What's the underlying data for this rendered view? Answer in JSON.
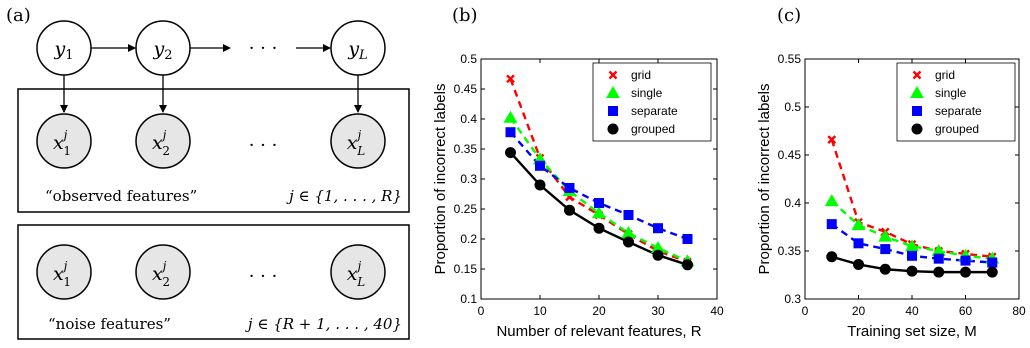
{
  "panel_a": {
    "label": "(a)",
    "top_nodes": [
      "y1",
      "y2",
      "yL"
    ],
    "dots_top": "· · ·",
    "observed_nodes": [
      "x1j",
      "x2j",
      "xLj"
    ],
    "dots_mid": "· · ·",
    "observed_caption": "“observed features”",
    "observed_index": "j ∈ {1, . . . , R}",
    "noise_nodes": [
      "x1j",
      "x2j",
      "xLj"
    ],
    "dots_bot": "· · ·",
    "noise_caption": "“noise features”",
    "noise_index": "j ∈ {R + 1, . . . , 40}"
  },
  "chart_data": [
    {
      "panel_label": "(b)",
      "type": "line",
      "xlabel": "Number of relevant features, R",
      "ylabel": "Proportion of incorrect labels",
      "xlim": [
        0,
        40
      ],
      "ylim": [
        0.1,
        0.5
      ],
      "xticks": [
        0,
        10,
        20,
        30,
        40
      ],
      "yticks": [
        0.1,
        0.15,
        0.2,
        0.25,
        0.3,
        0.35,
        0.4,
        0.45,
        0.5
      ],
      "ytick_labels": [
        "0.1",
        "0.15",
        "0.2",
        "0.25",
        "0.3",
        "0.35",
        "0.4",
        "0.45",
        "0.5"
      ],
      "legend_position": "top-right",
      "x": [
        5,
        10,
        15,
        20,
        25,
        30,
        35
      ],
      "series": [
        {
          "name": "grid",
          "color": "#ff0000",
          "marker": "x",
          "dashed": true,
          "values": [
            0.467,
            0.335,
            0.27,
            0.24,
            0.208,
            0.18,
            0.162
          ]
        },
        {
          "name": "single",
          "color": "#00ff00",
          "marker": "triangle",
          "dashed": true,
          "values": [
            0.402,
            0.333,
            0.28,
            0.243,
            0.21,
            0.185,
            0.163
          ]
        },
        {
          "name": "separate",
          "color": "#0000ff",
          "marker": "square",
          "dashed": true,
          "values": [
            0.378,
            0.322,
            0.285,
            0.26,
            0.24,
            0.218,
            0.2
          ]
        },
        {
          "name": "grouped",
          "color": "#000000",
          "marker": "circle",
          "dashed": false,
          "values": [
            0.344,
            0.29,
            0.248,
            0.218,
            0.195,
            0.173,
            0.157
          ]
        }
      ]
    },
    {
      "panel_label": "(c)",
      "type": "line",
      "xlabel": "Training set size, M",
      "ylabel": "Proportion of incorrect labels",
      "xlim": [
        0,
        80
      ],
      "ylim": [
        0.3,
        0.55
      ],
      "xticks": [
        0,
        20,
        40,
        60,
        80
      ],
      "yticks": [
        0.3,
        0.35,
        0.4,
        0.45,
        0.5,
        0.55
      ],
      "ytick_labels": [
        "0.3",
        "0.35",
        "0.4",
        "0.45",
        "0.5",
        "0.55"
      ],
      "legend_position": "top-right",
      "x": [
        10,
        20,
        30,
        40,
        50,
        60,
        70
      ],
      "series": [
        {
          "name": "grid",
          "color": "#ff0000",
          "marker": "x",
          "dashed": true,
          "values": [
            0.466,
            0.38,
            0.37,
            0.357,
            0.35,
            0.347,
            0.344
          ]
        },
        {
          "name": "single",
          "color": "#00ff00",
          "marker": "triangle",
          "dashed": true,
          "values": [
            0.402,
            0.377,
            0.365,
            0.355,
            0.35,
            0.345,
            0.342
          ]
        },
        {
          "name": "separate",
          "color": "#0000ff",
          "marker": "square",
          "dashed": true,
          "values": [
            0.378,
            0.358,
            0.352,
            0.345,
            0.342,
            0.34,
            0.338
          ]
        },
        {
          "name": "grouped",
          "color": "#000000",
          "marker": "circle",
          "dashed": false,
          "values": [
            0.344,
            0.336,
            0.331,
            0.329,
            0.328,
            0.328,
            0.328
          ]
        }
      ]
    }
  ]
}
